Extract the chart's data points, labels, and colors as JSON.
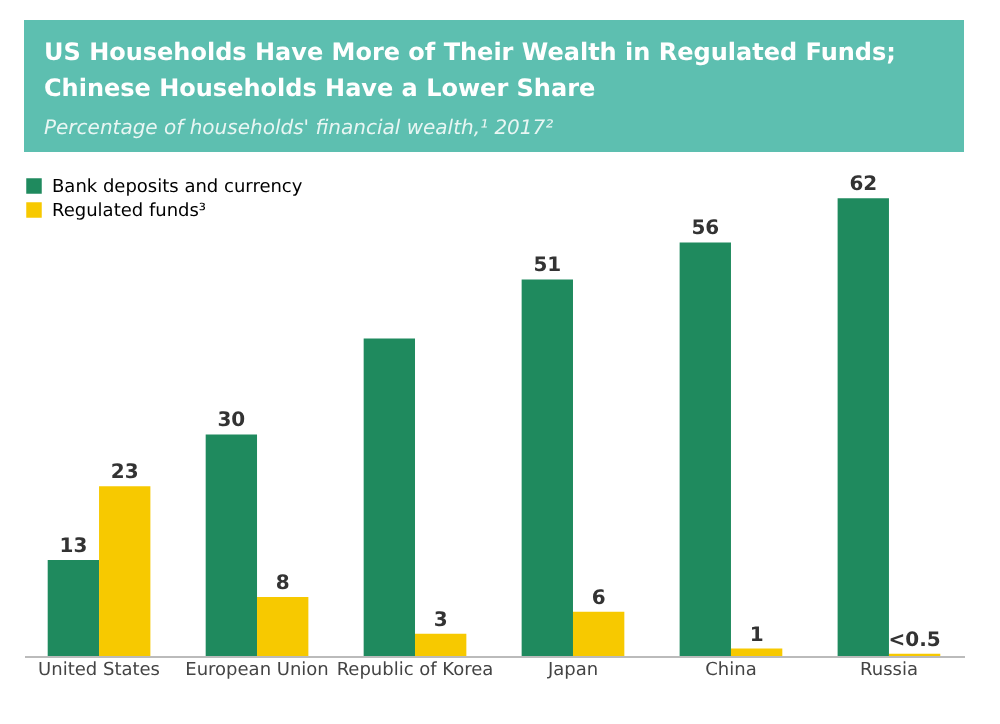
{
  "chart_data": {
    "type": "bar",
    "title": "US Households Have More of Their Wealth in Regulated Funds; Chinese Households Have a Lower Share",
    "subtitle": "Percentage of households' financial wealth,¹ 2017²",
    "categories": [
      "United States",
      "European Union",
      "Republic of Korea",
      "Japan",
      "China",
      "Russia"
    ],
    "series": [
      {
        "name": "Bank deposits and currency",
        "color": "#1f8a5e",
        "values": [
          13,
          30,
          43,
          51,
          56,
          62
        ],
        "value_labels": [
          "13",
          "30",
          null,
          "51",
          "56",
          "62"
        ]
      },
      {
        "name": "Regulated funds³",
        "color": "#f7c900",
        "values": [
          23,
          8,
          3,
          6,
          1,
          0.3
        ],
        "value_labels": [
          "23",
          "8",
          "3",
          "6",
          "1",
          "<0.5"
        ]
      }
    ],
    "legend": "top left",
    "grid": false
  }
}
